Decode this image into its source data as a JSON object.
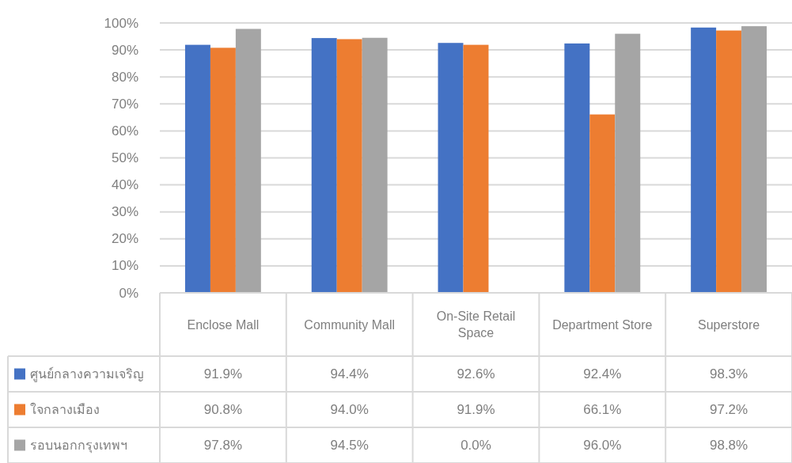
{
  "chart_data": {
    "type": "bar",
    "categories": [
      "Enclose Mall",
      "Community Mall",
      "On-Site Retail Space",
      "Department Store",
      "Superstore"
    ],
    "series": [
      {
        "name": "ศูนย์กลางความเจริญ",
        "color": "#4472c4",
        "values": [
          91.9,
          94.4,
          92.6,
          92.4,
          98.3
        ],
        "value_labels": [
          "91.9%",
          "94.4%",
          "92.6%",
          "92.4%",
          "98.3%"
        ]
      },
      {
        "name": "ใจกลางเมือง",
        "color": "#ed7d31",
        "values": [
          90.8,
          94.0,
          91.9,
          66.1,
          97.2
        ],
        "value_labels": [
          "90.8%",
          "94.0%",
          "91.9%",
          "66.1%",
          "97.2%"
        ]
      },
      {
        "name": "รอบนอกกรุงเทพฯ",
        "color": "#a5a5a5",
        "values": [
          97.8,
          94.5,
          0.0,
          96.0,
          98.8
        ],
        "value_labels": [
          "97.8%",
          "94.5%",
          "0.0%",
          "96.0%",
          "98.8%"
        ]
      }
    ],
    "ylim": [
      0,
      100
    ],
    "yticks": [
      {
        "value": 0,
        "label": "0%"
      },
      {
        "value": 10,
        "label": "10%"
      },
      {
        "value": 20,
        "label": "20%"
      },
      {
        "value": 30,
        "label": "30%"
      },
      {
        "value": 40,
        "label": "40%"
      },
      {
        "value": 50,
        "label": "50%"
      },
      {
        "value": 60,
        "label": "60%"
      },
      {
        "value": 70,
        "label": "70%"
      },
      {
        "value": 80,
        "label": "80%"
      },
      {
        "value": 90,
        "label": "90%"
      },
      {
        "value": 100,
        "label": "100%"
      }
    ],
    "grid": "y",
    "legend": "bottom"
  }
}
